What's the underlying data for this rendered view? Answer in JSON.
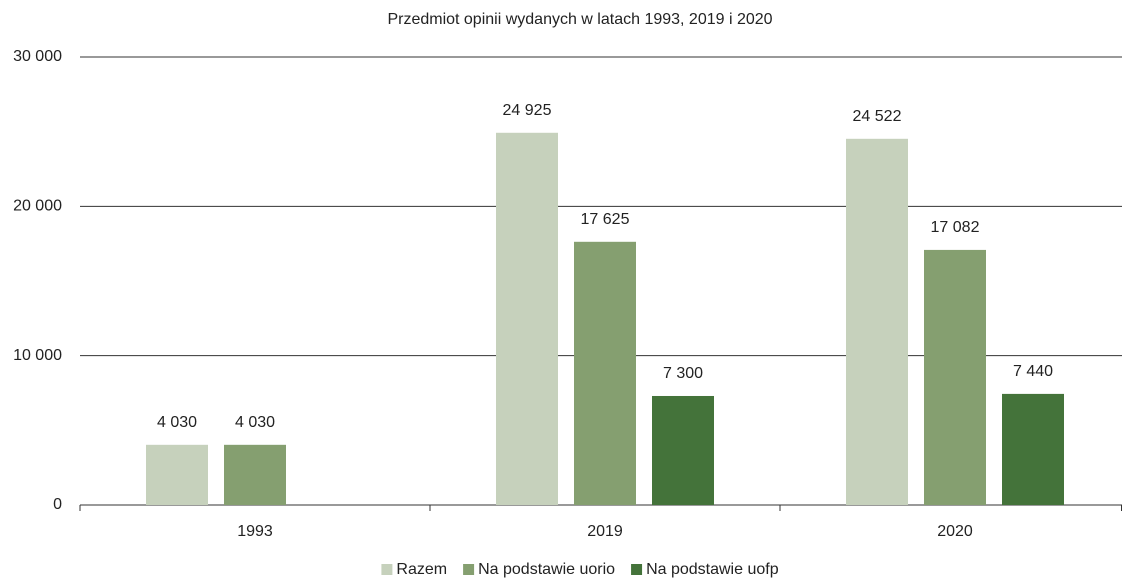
{
  "chart_data": {
    "type": "bar",
    "title": "Przedmiot opinii wydanych w latach 1993, 2019 i 2020",
    "categories": [
      "1993",
      "2019",
      "2020"
    ],
    "series": [
      {
        "name": "Razem",
        "color": "#c6d1bc",
        "values": [
          4030,
          24925,
          24522
        ],
        "value_labels": [
          "4 030",
          "24 925",
          "24 522"
        ]
      },
      {
        "name": "Na podstawie uorio",
        "color": "#859f70",
        "values": [
          4030,
          17625,
          17082
        ],
        "value_labels": [
          "4 030",
          "17 625",
          "17 082"
        ]
      },
      {
        "name": "Na podstawie uofp",
        "color": "#44733a",
        "values": [
          null,
          7300,
          7440
        ],
        "value_labels": [
          null,
          "7 300",
          "7 440"
        ]
      }
    ],
    "ylim": [
      0,
      30000
    ],
    "yticks": [
      0,
      {
        "value": 10000,
        "label": "10 000"
      },
      {
        "value": 20000,
        "label": "20 000"
      },
      {
        "value": 30000,
        "label": "30 000"
      }
    ],
    "grid": true,
    "legend": "bottom"
  }
}
